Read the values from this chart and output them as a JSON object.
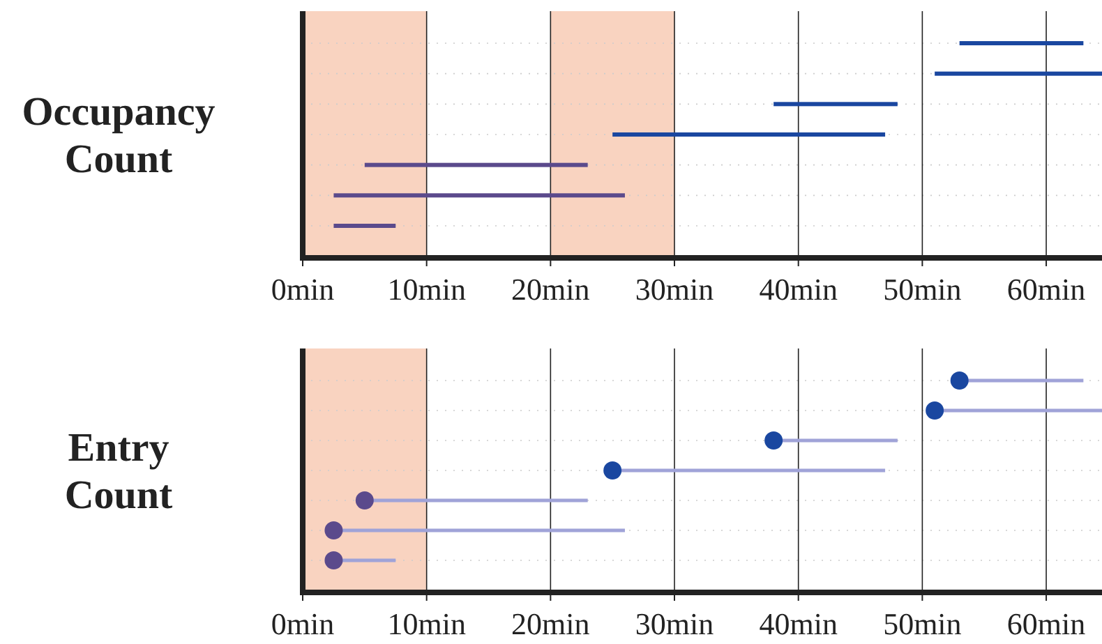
{
  "chart_data": [
    {
      "type": "bar",
      "orientation": "horizontal",
      "ylabel": "Occupancy Count",
      "categories": [
        null,
        null,
        null,
        null,
        null,
        null,
        null
      ],
      "series": [
        {
          "type": "bar",
          "values": [
            10,
            13.5,
            10,
            22,
            18,
            23.5,
            5
          ],
          "base": [
            53,
            51,
            38,
            25,
            5,
            2.5,
            2.5
          ],
          "colors": [
            "#1a47a0",
            "#1a47a0",
            "#1a47a0",
            "#1a47a0",
            "#5b4a8c",
            "#5b4a8c",
            "#5b4a8c"
          ]
        }
      ],
      "xlim": [
        0,
        64.5
      ],
      "xticks": [
        {
          "value": 0,
          "label": "0min"
        },
        {
          "value": 10,
          "label": "10min"
        },
        {
          "value": 20,
          "label": "20min"
        },
        {
          "value": 30,
          "label": "30min"
        },
        {
          "value": 40,
          "label": "40min"
        },
        {
          "value": 50,
          "label": "50min"
        },
        {
          "value": 60,
          "label": "60min"
        }
      ],
      "bands": [
        {
          "axis": "x",
          "from": 0,
          "to": 10,
          "color": "#f9d3c0"
        },
        {
          "axis": "x",
          "from": 20,
          "to": 30,
          "color": "#f9d3c0"
        }
      ],
      "grid": true
    },
    {
      "type": "bar",
      "orientation": "horizontal",
      "ylabel": "Entry Count",
      "categories": [
        null,
        null,
        null,
        null,
        null,
        null,
        null
      ],
      "series": [
        {
          "type": "bar",
          "values": [
            10,
            13.5,
            10,
            22,
            18,
            23.5,
            5
          ],
          "base": [
            53,
            51,
            38,
            25,
            5,
            2.5,
            2.5
          ],
          "color": "#a0a3d8"
        },
        {
          "type": "scatter",
          "marker": "circle",
          "values": [
            53,
            51,
            38,
            25,
            5,
            2.5,
            2.5
          ],
          "colors": [
            "#1a47a0",
            "#1a47a0",
            "#1a47a0",
            "#1a47a0",
            "#5b4a8c",
            "#5b4a8c",
            "#5b4a8c"
          ]
        }
      ],
      "xlim": [
        0,
        64.5
      ],
      "xticks": [
        {
          "value": 0,
          "label": "0min"
        },
        {
          "value": 10,
          "label": "10min"
        },
        {
          "value": 20,
          "label": "20min"
        },
        {
          "value": 30,
          "label": "30min"
        },
        {
          "value": 40,
          "label": "40min"
        },
        {
          "value": 50,
          "label": "50min"
        },
        {
          "value": 60,
          "label": "60min"
        }
      ],
      "bands": [
        {
          "axis": "x",
          "from": 0,
          "to": 10,
          "color": "#f9d3c0"
        }
      ],
      "grid": true
    }
  ]
}
